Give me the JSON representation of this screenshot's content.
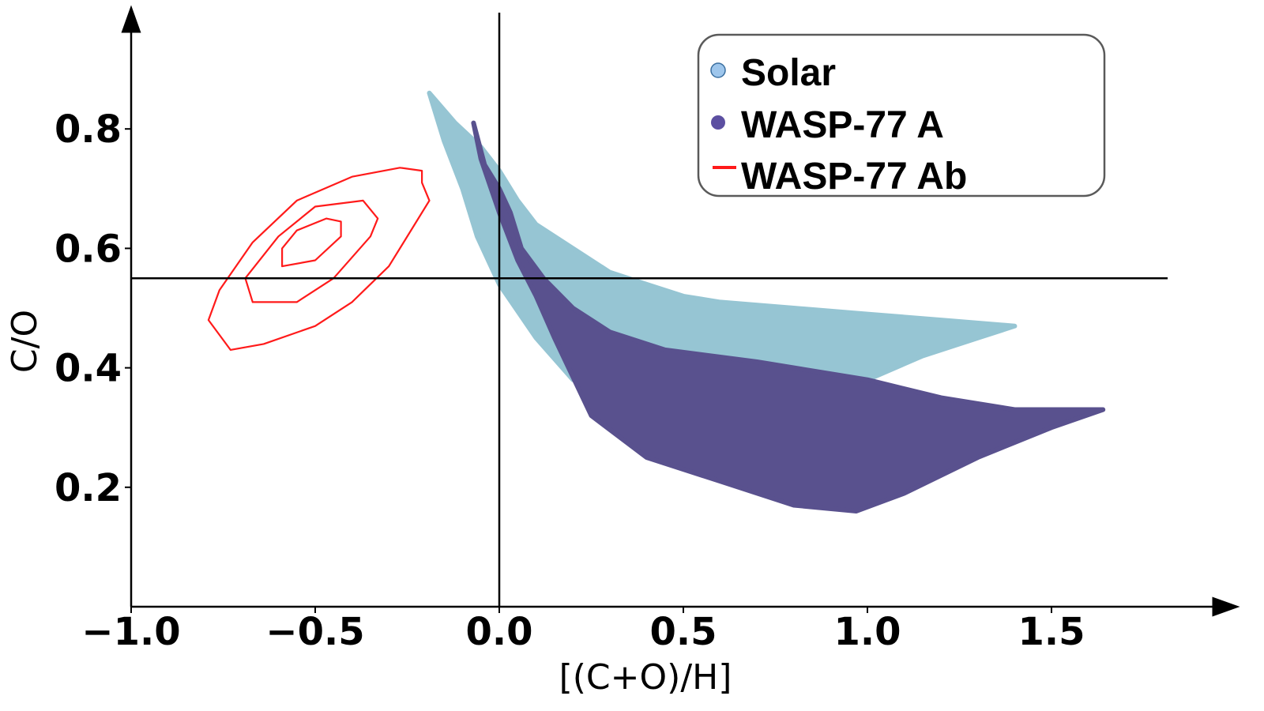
{
  "chart_data": {
    "type": "scatter",
    "title": "",
    "xlabel": "[(C+O)/H]",
    "ylabel": "C/O",
    "xlim": [
      -1.0,
      1.85
    ],
    "ylim": [
      0.0,
      0.97
    ],
    "xticks": [
      -1.0,
      -0.5,
      0.0,
      0.5,
      1.0,
      1.5
    ],
    "xtick_labels": [
      "−1.0",
      "−0.5",
      "0.0",
      "0.5",
      "1.0",
      "1.5"
    ],
    "yticks": [
      0.2,
      0.4,
      0.6,
      0.8
    ],
    "ytick_labels": [
      "0.2",
      "0.4",
      "0.6",
      "0.8"
    ],
    "grid": false,
    "legend_position": "top-right",
    "reference_lines": [
      {
        "orientation": "vertical",
        "x": 0.0
      },
      {
        "orientation": "horizontal",
        "y": 0.55
      }
    ],
    "series": [
      {
        "name": "Solar",
        "kind": "scatter-region",
        "color": "#96c5d3",
        "legend_marker_color": "#9ec6ec",
        "outline": [
          [
            -0.19,
            0.86
          ],
          [
            -0.12,
            0.81
          ],
          [
            -0.05,
            0.77
          ],
          [
            0.0,
            0.73
          ],
          [
            0.05,
            0.68
          ],
          [
            0.1,
            0.64
          ],
          [
            0.2,
            0.6
          ],
          [
            0.3,
            0.56
          ],
          [
            0.4,
            0.54
          ],
          [
            0.5,
            0.52
          ],
          [
            0.6,
            0.51
          ],
          [
            0.8,
            0.5
          ],
          [
            1.0,
            0.49
          ],
          [
            1.2,
            0.48
          ],
          [
            1.4,
            0.47
          ],
          [
            1.3,
            0.45
          ],
          [
            1.15,
            0.42
          ],
          [
            1.0,
            0.38
          ],
          [
            0.95,
            0.36
          ],
          [
            0.7,
            0.38
          ],
          [
            0.5,
            0.4
          ],
          [
            0.3,
            0.38
          ],
          [
            0.2,
            0.38
          ],
          [
            0.1,
            0.45
          ],
          [
            0.0,
            0.54
          ],
          [
            -0.06,
            0.62
          ],
          [
            -0.1,
            0.7
          ],
          [
            -0.15,
            0.78
          ]
        ]
      },
      {
        "name": "WASP-77 A",
        "kind": "scatter-region",
        "color": "#59518e",
        "legend_marker_color": "#5c4fa1",
        "outline": [
          [
            -0.07,
            0.81
          ],
          [
            -0.04,
            0.74
          ],
          [
            0.0,
            0.7
          ],
          [
            0.03,
            0.66
          ],
          [
            0.06,
            0.6
          ],
          [
            0.12,
            0.55
          ],
          [
            0.2,
            0.5
          ],
          [
            0.3,
            0.46
          ],
          [
            0.45,
            0.43
          ],
          [
            0.7,
            0.41
          ],
          [
            1.0,
            0.38
          ],
          [
            1.2,
            0.35
          ],
          [
            1.4,
            0.33
          ],
          [
            1.64,
            0.33
          ],
          [
            1.5,
            0.3
          ],
          [
            1.3,
            0.25
          ],
          [
            1.1,
            0.19
          ],
          [
            0.97,
            0.16
          ],
          [
            0.8,
            0.17
          ],
          [
            0.6,
            0.21
          ],
          [
            0.4,
            0.25
          ],
          [
            0.25,
            0.32
          ],
          [
            0.15,
            0.45
          ],
          [
            0.1,
            0.52
          ],
          [
            0.05,
            0.58
          ],
          [
            0.0,
            0.66
          ],
          [
            -0.05,
            0.75
          ]
        ]
      },
      {
        "name": "WASP-77 Ab",
        "kind": "contour",
        "color": "#ff1a1a",
        "levels": [
          [
            [
              -0.73,
              0.43
            ],
            [
              -0.64,
              0.44
            ],
            [
              -0.5,
              0.47
            ],
            [
              -0.4,
              0.51
            ],
            [
              -0.3,
              0.57
            ],
            [
              -0.19,
              0.68
            ],
            [
              -0.21,
              0.71
            ],
            [
              -0.21,
              0.73
            ],
            [
              -0.27,
              0.735
            ],
            [
              -0.4,
              0.72
            ],
            [
              -0.55,
              0.68
            ],
            [
              -0.67,
              0.61
            ],
            [
              -0.76,
              0.53
            ],
            [
              -0.79,
              0.48
            ]
          ],
          [
            [
              -0.67,
              0.51
            ],
            [
              -0.55,
              0.51
            ],
            [
              -0.45,
              0.55
            ],
            [
              -0.35,
              0.62
            ],
            [
              -0.33,
              0.65
            ],
            [
              -0.37,
              0.68
            ],
            [
              -0.5,
              0.67
            ],
            [
              -0.6,
              0.62
            ],
            [
              -0.69,
              0.55
            ]
          ],
          [
            [
              -0.59,
              0.57
            ],
            [
              -0.5,
              0.58
            ],
            [
              -0.43,
              0.62
            ],
            [
              -0.43,
              0.645
            ],
            [
              -0.47,
              0.65
            ],
            [
              -0.55,
              0.63
            ],
            [
              -0.59,
              0.6
            ]
          ]
        ]
      }
    ]
  }
}
